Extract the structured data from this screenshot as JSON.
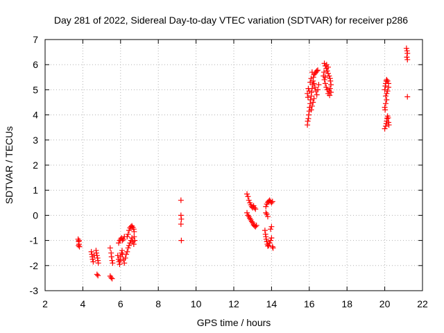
{
  "chart_data": {
    "type": "scatter",
    "title": "Day 281 of 2022, Sidereal Day-to-day VTEC variation (SDTVAR) for receiver p286",
    "xlabel": "GPS time / hours",
    "ylabel": "SDTVAR / TECUs",
    "xlim": [
      2,
      22
    ],
    "ylim": [
      -3,
      7
    ],
    "xticks": [
      "2",
      "4",
      "6",
      "8",
      "10",
      "12",
      "14",
      "16",
      "18",
      "20",
      "22"
    ],
    "yticks": [
      "-3",
      "-2",
      "-1",
      "0",
      "1",
      "2",
      "3",
      "4",
      "5",
      "6",
      "7"
    ],
    "grid": true,
    "marker": "+",
    "series": [
      {
        "name": "SDTVAR",
        "color": "#ff0000",
        "points": [
          [
            3.75,
            -0.95
          ],
          [
            3.78,
            -1.05
          ],
          [
            3.8,
            -1.15
          ],
          [
            3.82,
            -1.25
          ],
          [
            3.77,
            -1.2
          ],
          [
            3.8,
            -1.0
          ],
          [
            4.45,
            -1.45
          ],
          [
            4.48,
            -1.55
          ],
          [
            4.5,
            -1.65
          ],
          [
            4.52,
            -1.75
          ],
          [
            4.55,
            -1.85
          ],
          [
            4.6,
            -1.6
          ],
          [
            4.7,
            -1.4
          ],
          [
            4.72,
            -1.5
          ],
          [
            4.75,
            -1.6
          ],
          [
            4.78,
            -1.7
          ],
          [
            4.8,
            -1.8
          ],
          [
            4.82,
            -1.9
          ],
          [
            4.75,
            -2.35
          ],
          [
            4.8,
            -2.4
          ],
          [
            5.45,
            -1.3
          ],
          [
            5.5,
            -1.5
          ],
          [
            5.52,
            -1.65
          ],
          [
            5.55,
            -1.8
          ],
          [
            5.58,
            -1.9
          ],
          [
            5.45,
            -2.42
          ],
          [
            5.5,
            -2.48
          ],
          [
            5.55,
            -2.52
          ],
          [
            5.85,
            -1.6
          ],
          [
            5.9,
            -1.75
          ],
          [
            5.92,
            -1.85
          ],
          [
            5.95,
            -1.95
          ],
          [
            5.98,
            -1.8
          ],
          [
            6.0,
            -1.65
          ],
          [
            6.05,
            -1.5
          ],
          [
            6.08,
            -1.4
          ],
          [
            6.1,
            -1.55
          ],
          [
            6.15,
            -1.75
          ],
          [
            6.2,
            -1.9
          ],
          [
            6.25,
            -1.7
          ],
          [
            6.3,
            -1.55
          ],
          [
            6.35,
            -1.45
          ],
          [
            6.4,
            -1.3
          ],
          [
            6.45,
            -1.2
          ],
          [
            6.5,
            -1.1
          ],
          [
            6.55,
            -1.0
          ],
          [
            6.6,
            -0.9
          ],
          [
            6.65,
            -1.05
          ],
          [
            6.7,
            -1.15
          ],
          [
            6.75,
            -1.0
          ],
          [
            6.72,
            -0.85
          ],
          [
            5.9,
            -1.1
          ],
          [
            5.95,
            -1.0
          ],
          [
            6.0,
            -0.95
          ],
          [
            6.05,
            -0.9
          ],
          [
            6.1,
            -1.0
          ],
          [
            6.15,
            -0.95
          ],
          [
            6.2,
            -0.85
          ],
          [
            6.4,
            -0.75
          ],
          [
            6.45,
            -0.6
          ],
          [
            6.5,
            -0.5
          ],
          [
            6.55,
            -0.45
          ],
          [
            6.6,
            -0.42
          ],
          [
            6.65,
            -0.48
          ],
          [
            6.7,
            -0.55
          ],
          [
            6.72,
            -0.65
          ],
          [
            6.35,
            -0.85
          ],
          [
            9.2,
            0.6
          ],
          [
            9.2,
            0.0
          ],
          [
            9.22,
            -0.15
          ],
          [
            9.2,
            -0.35
          ],
          [
            9.22,
            -1.0
          ],
          [
            12.7,
            0.85
          ],
          [
            12.75,
            0.75
          ],
          [
            12.8,
            0.6
          ],
          [
            12.85,
            0.5
          ],
          [
            12.9,
            0.42
          ],
          [
            12.95,
            0.35
          ],
          [
            13.0,
            0.3
          ],
          [
            13.05,
            0.38
          ],
          [
            13.1,
            0.3
          ],
          [
            13.15,
            0.25
          ],
          [
            12.7,
            0.1
          ],
          [
            12.75,
            0.0
          ],
          [
            12.8,
            -0.05
          ],
          [
            12.85,
            -0.12
          ],
          [
            12.9,
            -0.18
          ],
          [
            12.95,
            -0.25
          ],
          [
            13.0,
            -0.3
          ],
          [
            13.05,
            -0.38
          ],
          [
            13.1,
            -0.42
          ],
          [
            13.15,
            -0.45
          ],
          [
            13.2,
            -0.4
          ],
          [
            13.65,
            -0.6
          ],
          [
            13.68,
            -0.75
          ],
          [
            13.7,
            -0.85
          ],
          [
            13.72,
            -0.95
          ],
          [
            13.75,
            -1.05
          ],
          [
            13.78,
            -1.15
          ],
          [
            13.8,
            -1.22
          ],
          [
            13.85,
            -1.2
          ],
          [
            13.9,
            -1.1
          ],
          [
            13.95,
            -1.0
          ],
          [
            14.0,
            -0.9
          ],
          [
            14.05,
            -1.25
          ],
          [
            14.08,
            -1.3
          ],
          [
            13.7,
            0.1
          ],
          [
            13.75,
            0.05
          ],
          [
            13.8,
            -0.05
          ],
          [
            13.7,
            0.35
          ],
          [
            13.75,
            0.45
          ],
          [
            13.8,
            0.52
          ],
          [
            13.85,
            0.56
          ],
          [
            13.9,
            0.6
          ],
          [
            13.95,
            0.55
          ],
          [
            14.0,
            0.5
          ],
          [
            14.05,
            0.55
          ],
          [
            13.95,
            -0.55
          ],
          [
            14.0,
            -0.45
          ],
          [
            15.9,
            3.6
          ],
          [
            15.92,
            3.75
          ],
          [
            15.95,
            3.85
          ],
          [
            15.97,
            4.0
          ],
          [
            16.0,
            4.15
          ],
          [
            16.02,
            4.3
          ],
          [
            16.05,
            4.45
          ],
          [
            16.07,
            4.6
          ],
          [
            16.1,
            4.75
          ],
          [
            16.12,
            4.9
          ],
          [
            16.0,
            4.95
          ],
          [
            15.95,
            5.05
          ],
          [
            15.9,
            4.85
          ],
          [
            15.93,
            4.7
          ],
          [
            16.15,
            5.05
          ],
          [
            16.18,
            5.2
          ],
          [
            16.2,
            5.35
          ],
          [
            16.22,
            5.5
          ],
          [
            16.25,
            5.6
          ],
          [
            16.3,
            5.65
          ],
          [
            16.35,
            5.7
          ],
          [
            16.4,
            5.75
          ],
          [
            16.45,
            5.78
          ],
          [
            16.25,
            5.25
          ],
          [
            16.3,
            5.1
          ],
          [
            16.35,
            4.95
          ],
          [
            16.4,
            4.8
          ],
          [
            16.45,
            5.0
          ],
          [
            16.5,
            5.2
          ],
          [
            16.2,
            4.5
          ],
          [
            16.25,
            4.65
          ],
          [
            16.15,
            4.35
          ],
          [
            16.1,
            4.2
          ],
          [
            16.05,
            5.3
          ],
          [
            16.1,
            5.45
          ],
          [
            16.15,
            5.7
          ],
          [
            16.8,
            6.05
          ],
          [
            16.85,
            5.95
          ],
          [
            16.9,
            5.85
          ],
          [
            16.95,
            5.75
          ],
          [
            17.0,
            5.65
          ],
          [
            17.05,
            5.55
          ],
          [
            17.1,
            5.45
          ],
          [
            17.12,
            5.35
          ],
          [
            17.15,
            5.2
          ],
          [
            17.1,
            5.05
          ],
          [
            17.05,
            4.95
          ],
          [
            17.0,
            4.85
          ],
          [
            16.95,
            5.0
          ],
          [
            16.9,
            5.1
          ],
          [
            16.85,
            5.25
          ],
          [
            16.8,
            5.4
          ],
          [
            16.75,
            5.55
          ],
          [
            16.78,
            5.7
          ],
          [
            16.85,
            5.5
          ],
          [
            17.0,
            5.9
          ],
          [
            17.08,
            4.78
          ],
          [
            17.15,
            4.9
          ],
          [
            16.92,
            6.0
          ],
          [
            20.0,
            5.0
          ],
          [
            20.03,
            5.15
          ],
          [
            20.05,
            5.25
          ],
          [
            20.08,
            5.35
          ],
          [
            20.1,
            5.4
          ],
          [
            20.15,
            5.35
          ],
          [
            20.2,
            5.25
          ],
          [
            20.2,
            5.1
          ],
          [
            20.15,
            4.95
          ],
          [
            20.1,
            4.85
          ],
          [
            20.05,
            4.75
          ],
          [
            20.1,
            4.6
          ],
          [
            20.05,
            4.45
          ],
          [
            20.0,
            4.3
          ],
          [
            20.02,
            4.2
          ],
          [
            20.0,
            3.45
          ],
          [
            20.05,
            3.55
          ],
          [
            20.08,
            3.65
          ],
          [
            20.1,
            3.75
          ],
          [
            20.12,
            3.85
          ],
          [
            20.15,
            3.95
          ],
          [
            20.18,
            3.88
          ],
          [
            20.2,
            3.7
          ],
          [
            20.22,
            3.6
          ],
          [
            21.15,
            6.65
          ],
          [
            21.18,
            6.55
          ],
          [
            21.2,
            6.45
          ],
          [
            21.17,
            6.3
          ],
          [
            21.2,
            6.2
          ],
          [
            21.2,
            4.72
          ]
        ]
      }
    ]
  }
}
